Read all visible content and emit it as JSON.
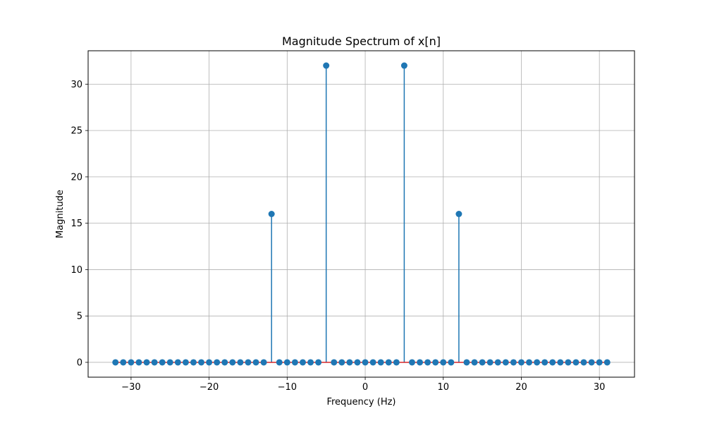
{
  "chart_data": {
    "type": "stem",
    "title": "Magnitude Spectrum of x[n]",
    "xlabel": "Frequency (Hz)",
    "ylabel": "Magnitude",
    "xlim": [
      -35.5,
      34.5
    ],
    "ylim": [
      -1.6,
      33.6
    ],
    "xticks": [
      -30,
      -20,
      -10,
      0,
      10,
      20,
      30
    ],
    "xtick_labels": [
      "−30",
      "−20",
      "−10",
      "0",
      "10",
      "20",
      "30"
    ],
    "yticks": [
      0,
      5,
      10,
      15,
      20,
      25,
      30
    ],
    "ytick_labels": [
      "0",
      "5",
      "10",
      "15",
      "20",
      "25",
      "30"
    ],
    "grid": true,
    "color": "#1f77b4",
    "x": [
      -32,
      -31,
      -30,
      -29,
      -28,
      -27,
      -26,
      -25,
      -24,
      -23,
      -22,
      -21,
      -20,
      -19,
      -18,
      -17,
      -16,
      -15,
      -14,
      -13,
      -12,
      -11,
      -10,
      -9,
      -8,
      -7,
      -6,
      -5,
      -4,
      -3,
      -2,
      -1,
      0,
      1,
      2,
      3,
      4,
      5,
      6,
      7,
      8,
      9,
      10,
      11,
      12,
      13,
      14,
      15,
      16,
      17,
      18,
      19,
      20,
      21,
      22,
      23,
      24,
      25,
      26,
      27,
      28,
      29,
      30,
      31
    ],
    "y": [
      0,
      0,
      0,
      0,
      0,
      0,
      0,
      0,
      0,
      0,
      0,
      0,
      0,
      0,
      0,
      0,
      0,
      0,
      0,
      0,
      16,
      0,
      0,
      0,
      0,
      0,
      0,
      32,
      0,
      0,
      0,
      0,
      0,
      0,
      0,
      0,
      0,
      32,
      0,
      0,
      0,
      0,
      0,
      0,
      16,
      0,
      0,
      0,
      0,
      0,
      0,
      0,
      0,
      0,
      0,
      0,
      0,
      0,
      0,
      0,
      0,
      0,
      0,
      0
    ]
  }
}
